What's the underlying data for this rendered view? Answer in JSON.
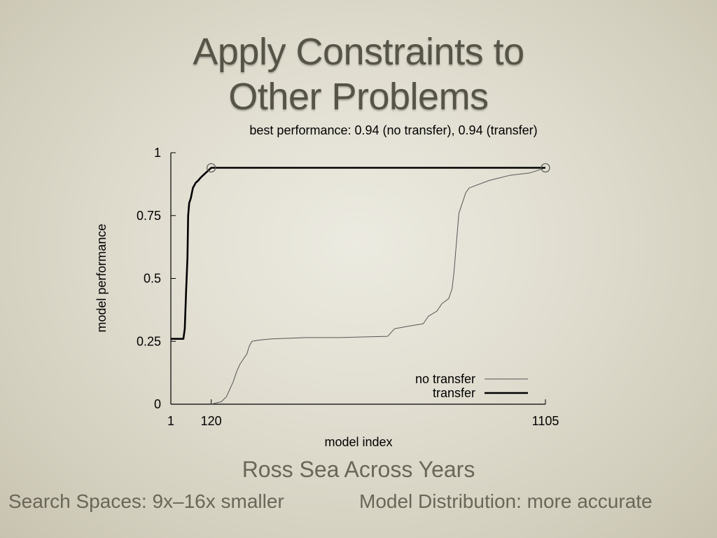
{
  "slide": {
    "title_line1": "Apply Constraints to",
    "title_line2": "Other Problems",
    "caption": "Ross Sea Across Years",
    "footer_left": "Search Spaces: 9x–16x smaller",
    "footer_right": "Model Distribution: more accurate"
  },
  "chart_data": {
    "type": "line",
    "title": "best performance: 0.94 (no transfer), 0.94 (transfer)",
    "xlabel": "model index",
    "ylabel": "model performance",
    "xlim": [
      1,
      1105
    ],
    "ylim": [
      0,
      1
    ],
    "xticks": [
      1,
      120,
      1105
    ],
    "yticks": [
      0,
      0.25,
      0.5,
      0.75,
      1
    ],
    "ytick_labels": [
      "0",
      "0.25",
      "0.5",
      "0.75",
      "1"
    ],
    "legend_position": "bottom-right",
    "series": [
      {
        "name": "no transfer",
        "color": "#555555",
        "points": [
          [
            120,
            0.0
          ],
          [
            150,
            0.01
          ],
          [
            165,
            0.03
          ],
          [
            175,
            0.06
          ],
          [
            185,
            0.09
          ],
          [
            195,
            0.13
          ],
          [
            205,
            0.16
          ],
          [
            215,
            0.18
          ],
          [
            225,
            0.2
          ],
          [
            232,
            0.23
          ],
          [
            240,
            0.25
          ],
          [
            260,
            0.255
          ],
          [
            300,
            0.26
          ],
          [
            400,
            0.265
          ],
          [
            500,
            0.265
          ],
          [
            640,
            0.27
          ],
          [
            660,
            0.3
          ],
          [
            700,
            0.31
          ],
          [
            745,
            0.32
          ],
          [
            760,
            0.35
          ],
          [
            785,
            0.37
          ],
          [
            800,
            0.4
          ],
          [
            820,
            0.42
          ],
          [
            830,
            0.46
          ],
          [
            835,
            0.52
          ],
          [
            840,
            0.6
          ],
          [
            845,
            0.68
          ],
          [
            850,
            0.76
          ],
          [
            860,
            0.8
          ],
          [
            870,
            0.84
          ],
          [
            880,
            0.86
          ],
          [
            900,
            0.87
          ],
          [
            940,
            0.89
          ],
          [
            1000,
            0.91
          ],
          [
            1060,
            0.92
          ],
          [
            1105,
            0.94
          ]
        ]
      },
      {
        "name": "transfer",
        "color": "#000000",
        "points": [
          [
            1,
            0.26
          ],
          [
            38,
            0.26
          ],
          [
            42,
            0.3
          ],
          [
            46,
            0.45
          ],
          [
            50,
            0.58
          ],
          [
            52,
            0.75
          ],
          [
            55,
            0.8
          ],
          [
            60,
            0.82
          ],
          [
            66,
            0.86
          ],
          [
            74,
            0.88
          ],
          [
            82,
            0.89
          ],
          [
            88,
            0.9
          ],
          [
            96,
            0.91
          ],
          [
            104,
            0.92
          ],
          [
            112,
            0.93
          ],
          [
            120,
            0.94
          ],
          [
            1105,
            0.94
          ]
        ]
      }
    ],
    "best_points": [
      [
        120,
        0.94
      ],
      [
        1105,
        0.94
      ]
    ]
  }
}
